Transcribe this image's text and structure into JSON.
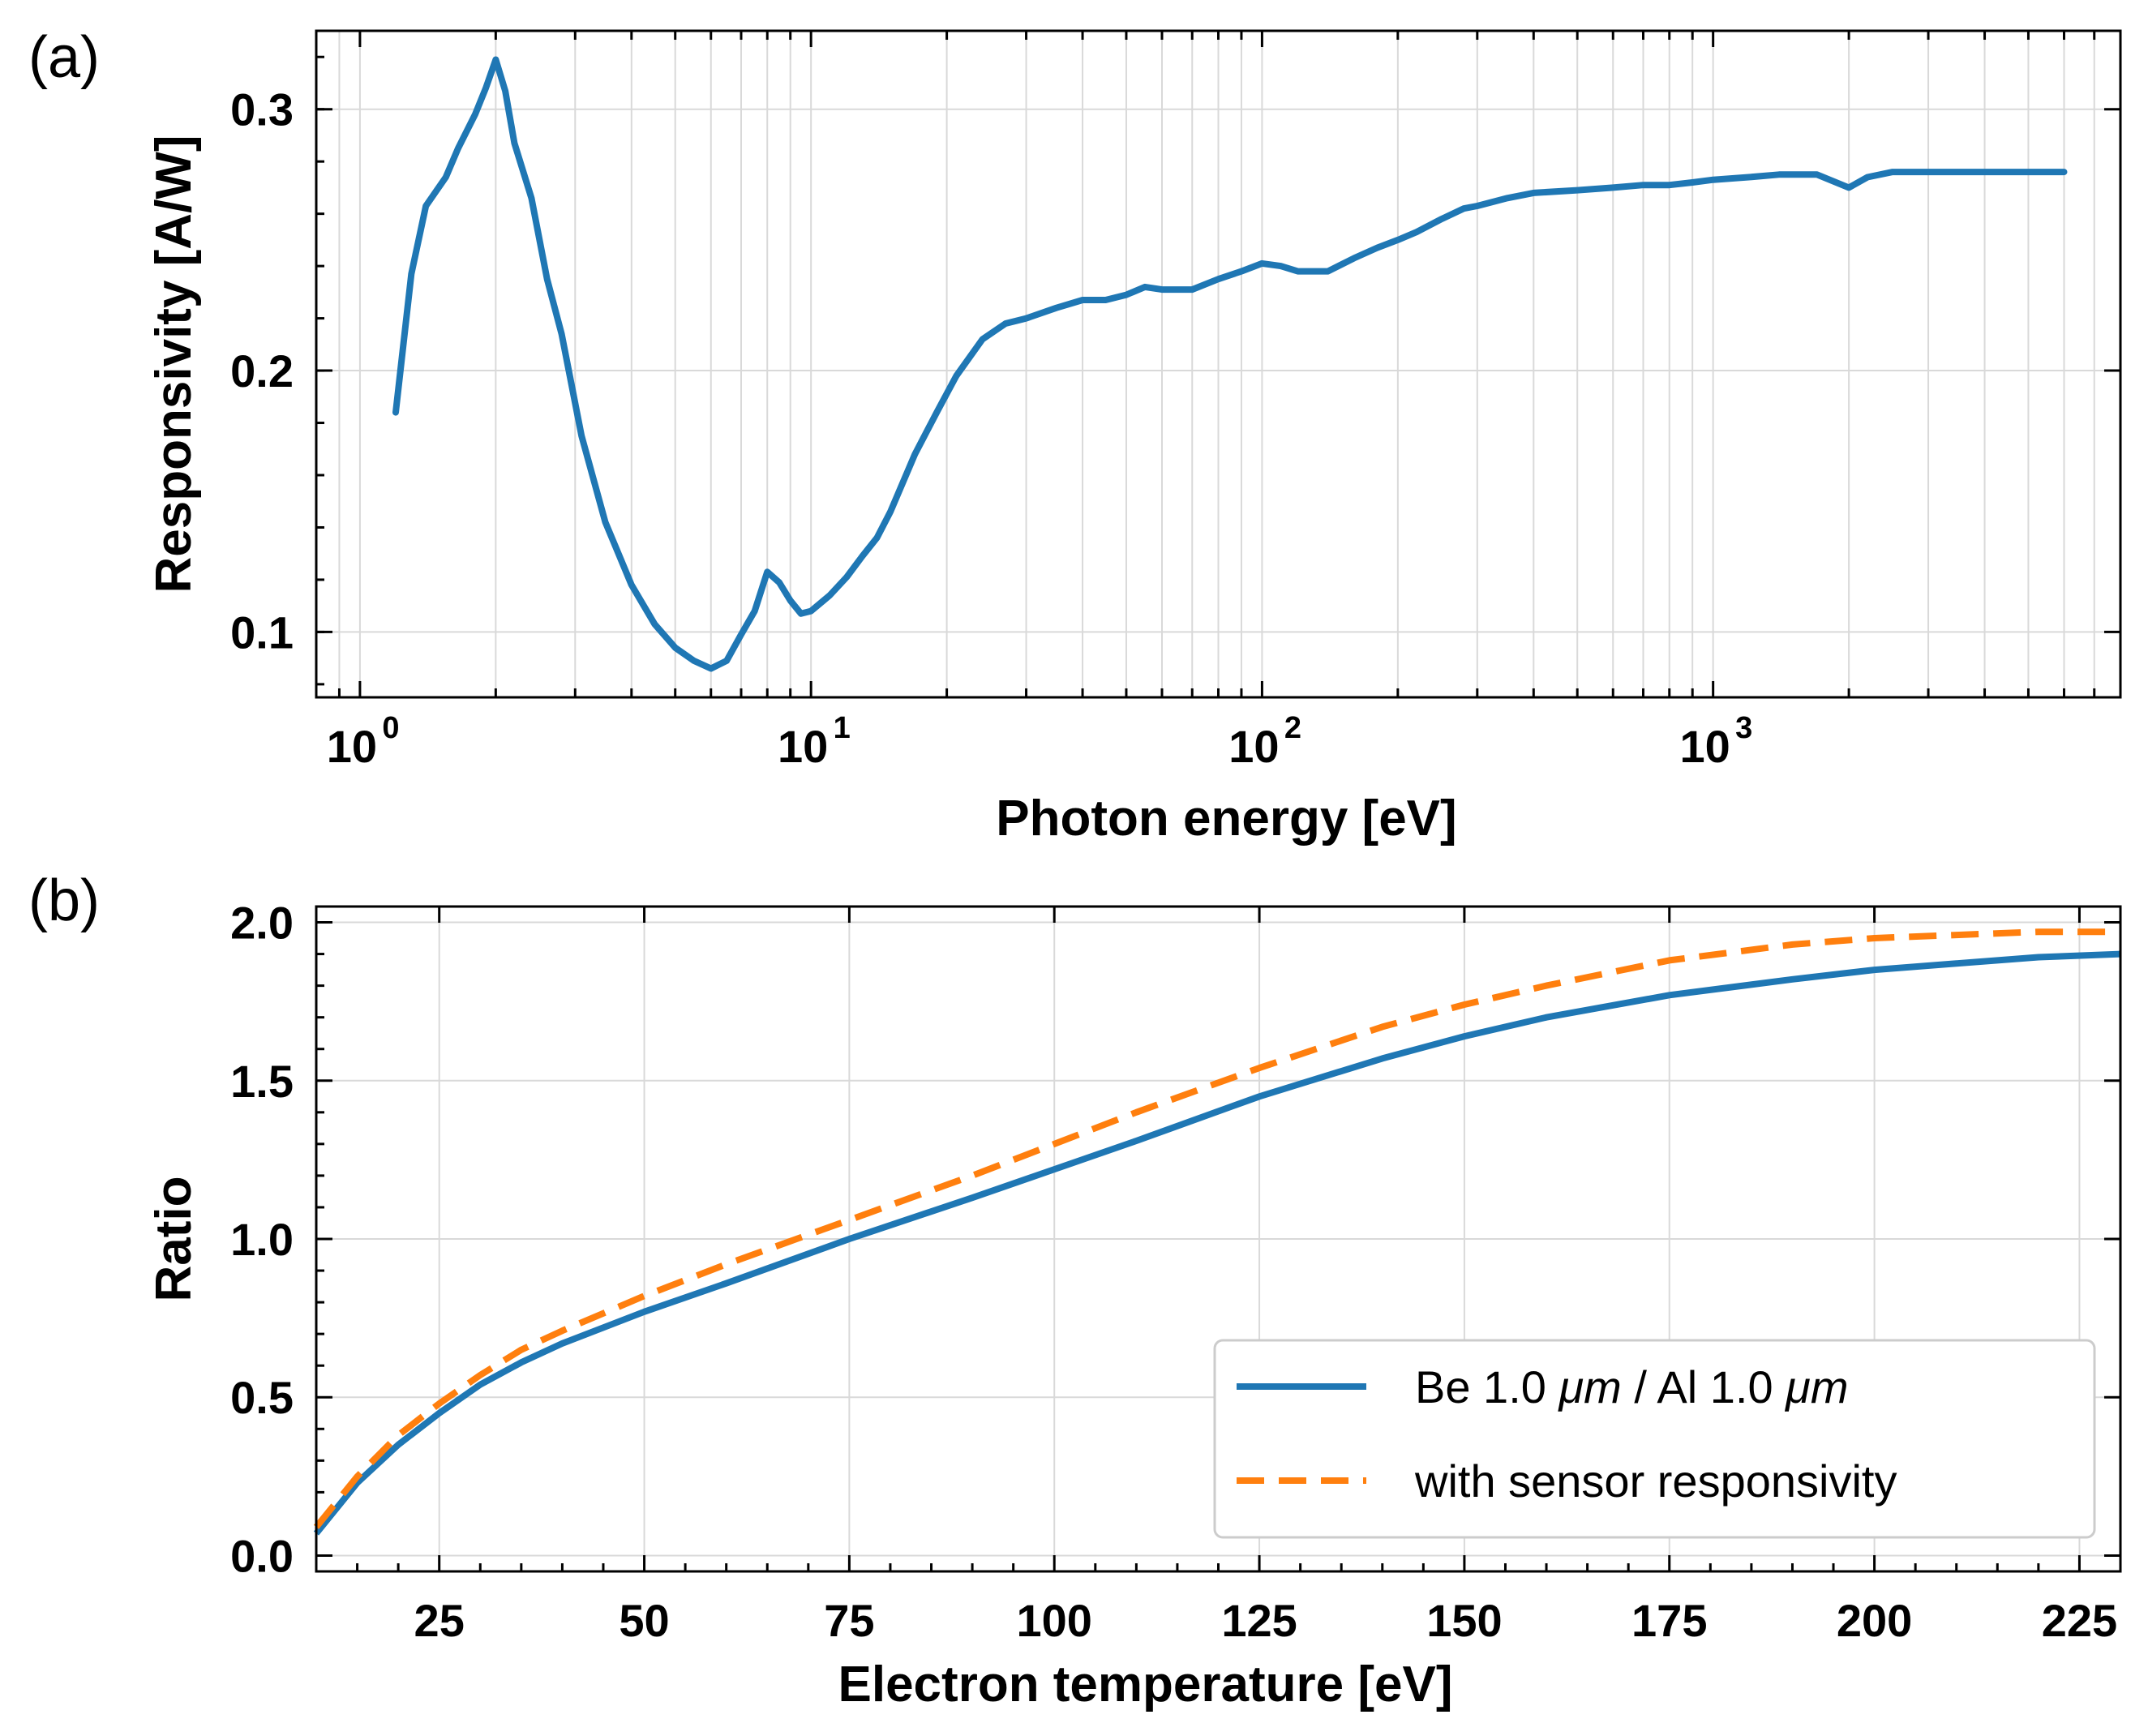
{
  "figure": {
    "panel_a_label": "(a)",
    "panel_b_label": "(b)"
  },
  "colors": {
    "blue": "#1f77b4",
    "orange": "#ff7f0e",
    "grid": "#d9d9d9"
  },
  "chart_data": [
    {
      "id": "a",
      "type": "line",
      "xscale": "log",
      "xlabel": "Photon energy [eV]",
      "ylabel": "Responsivity [A/W]",
      "xlim": [
        0.8,
        8000
      ],
      "ylim": [
        0.075,
        0.33
      ],
      "xticks": [
        1,
        10,
        100,
        1000
      ],
      "xtick_labels": [
        {
          "base": "10",
          "exp": "0"
        },
        {
          "base": "10",
          "exp": "1"
        },
        {
          "base": "10",
          "exp": "2"
        },
        {
          "base": "10",
          "exp": "3"
        }
      ],
      "yticks": [
        0.1,
        0.2,
        0.3
      ],
      "ytick_labels": [
        "0.1",
        "0.2",
        "0.3"
      ],
      "series": [
        {
          "name": "responsivity",
          "color": "#1f77b4",
          "x": [
            1.2,
            1.3,
            1.4,
            1.55,
            1.65,
            1.8,
            1.9,
            2.0,
            2.1,
            2.2,
            2.4,
            2.6,
            2.8,
            3.1,
            3.5,
            4.0,
            4.5,
            5.0,
            5.5,
            6.0,
            6.5,
            7.0,
            7.5,
            8.0,
            8.5,
            9.0,
            9.5,
            10,
            11,
            12,
            13,
            14,
            15,
            17,
            19,
            21,
            24,
            27,
            30,
            35,
            40,
            45,
            50,
            55,
            60,
            70,
            80,
            90,
            100,
            110,
            120,
            140,
            160,
            180,
            200,
            220,
            250,
            280,
            300,
            350,
            400,
            500,
            600,
            700,
            800,
            900,
            1000,
            1200,
            1400,
            1700,
            2000,
            2200,
            2500,
            3000,
            4000,
            5000,
            6000
          ],
          "y": [
            0.184,
            0.237,
            0.263,
            0.274,
            0.285,
            0.298,
            0.308,
            0.319,
            0.307,
            0.287,
            0.266,
            0.235,
            0.214,
            0.175,
            0.142,
            0.118,
            0.103,
            0.094,
            0.089,
            0.086,
            0.089,
            0.099,
            0.108,
            0.123,
            0.119,
            0.112,
            0.107,
            0.108,
            0.114,
            0.121,
            0.129,
            0.136,
            0.146,
            0.168,
            0.184,
            0.198,
            0.212,
            0.218,
            0.22,
            0.224,
            0.227,
            0.227,
            0.229,
            0.232,
            0.231,
            0.231,
            0.235,
            0.238,
            0.241,
            0.24,
            0.238,
            0.238,
            0.243,
            0.247,
            0.25,
            0.253,
            0.258,
            0.262,
            0.263,
            0.266,
            0.268,
            0.269,
            0.27,
            0.271,
            0.271,
            0.272,
            0.273,
            0.274,
            0.275,
            0.275,
            0.27,
            0.274,
            0.276,
            0.276,
            0.276,
            0.276,
            0.276
          ]
        }
      ]
    },
    {
      "id": "b",
      "type": "line",
      "xlabel": "Electron temperature [eV]",
      "ylabel": "Ratio",
      "xlim": [
        10,
        230
      ],
      "ylim": [
        -0.05,
        2.05
      ],
      "xticks": [
        25,
        50,
        75,
        100,
        125,
        150,
        175,
        200,
        225
      ],
      "xtick_labels": [
        "25",
        "50",
        "75",
        "100",
        "125",
        "150",
        "175",
        "200",
        "225"
      ],
      "yticks": [
        0.0,
        0.5,
        1.0,
        1.5,
        2.0
      ],
      "ytick_labels": [
        "0.0",
        "0.5",
        "1.0",
        "1.5",
        "2.0"
      ],
      "series": [
        {
          "name": "Be 1.0 μm / Al 1.0 μm",
          "legend_prefix": "Be 1.0 ",
          "legend_unit1": "μm",
          "legend_mid": " / Al 1.0 ",
          "legend_unit2": "μm",
          "color": "#1f77b4",
          "style": "solid",
          "x": [
            10,
            15,
            20,
            25,
            30,
            35,
            40,
            50,
            60,
            75,
            90,
            100,
            110,
            125,
            140,
            150,
            160,
            175,
            190,
            200,
            210,
            220,
            230
          ],
          "y": [
            0.07,
            0.23,
            0.35,
            0.45,
            0.54,
            0.61,
            0.67,
            0.77,
            0.86,
            1.0,
            1.13,
            1.22,
            1.31,
            1.45,
            1.57,
            1.64,
            1.7,
            1.77,
            1.82,
            1.85,
            1.87,
            1.89,
            1.9
          ]
        },
        {
          "name": "with sensor responsivity",
          "legend_label": "with sensor responsivity",
          "color": "#ff7f0e",
          "style": "dashed",
          "x": [
            10,
            15,
            20,
            25,
            30,
            35,
            40,
            50,
            60,
            75,
            90,
            100,
            110,
            125,
            140,
            150,
            160,
            175,
            190,
            200,
            210,
            220,
            230
          ],
          "y": [
            0.09,
            0.25,
            0.38,
            0.48,
            0.57,
            0.65,
            0.71,
            0.82,
            0.92,
            1.06,
            1.2,
            1.3,
            1.4,
            1.54,
            1.67,
            1.74,
            1.8,
            1.88,
            1.93,
            1.95,
            1.96,
            1.97,
            1.97
          ]
        }
      ],
      "legend_position": "lower-right"
    }
  ]
}
